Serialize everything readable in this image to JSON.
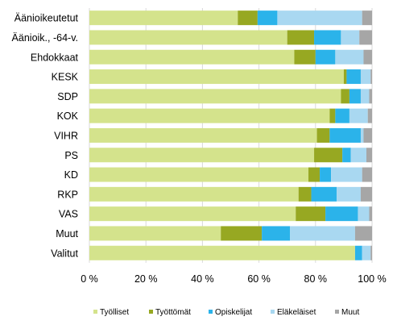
{
  "chart_data": {
    "type": "bar",
    "orientation": "horizontal",
    "stacked": true,
    "title": "",
    "xlabel": "",
    "ylabel": "",
    "xlim": [
      0,
      100
    ],
    "grid": true,
    "legend_position": "bottom",
    "tick_labels": [
      "0 %",
      "20 %",
      "40 %",
      "60 %",
      "80 %",
      "100 %"
    ],
    "categories": [
      "Äänioikeutetut",
      "Äänioik., -64-v.",
      "Ehdokkaat",
      "KESK",
      "SDP",
      "KOK",
      "VIHR",
      "PS",
      "KD",
      "RKP",
      "VAS",
      "Muut",
      "Valitut"
    ],
    "series": [
      {
        "name": "Työlliset",
        "color": "#d4e38c",
        "values": [
          52.5,
          70,
          72.5,
          90,
          89,
          85,
          80.5,
          79.5,
          77.5,
          74,
          73,
          46.5,
          94
        ]
      },
      {
        "name": "Työttömät",
        "color": "#97a822",
        "values": [
          7,
          9.5,
          7.5,
          1,
          3,
          2,
          4.5,
          10,
          4,
          4.5,
          10.5,
          14.5,
          0
        ]
      },
      {
        "name": "Opiskelijat",
        "color": "#2bb3ea",
        "values": [
          7,
          9.5,
          7,
          5,
          4,
          5,
          11,
          3,
          4,
          9,
          11.5,
          10,
          2.5
        ]
      },
      {
        "name": "Eläkeläiset",
        "color": "#a9d8f1",
        "values": [
          30,
          6.5,
          10,
          3.5,
          3,
          6.5,
          1,
          5.5,
          11,
          8.5,
          4,
          23,
          3
        ]
      },
      {
        "name": "Muut",
        "color": "#a6a6a6",
        "values": [
          3.5,
          4.5,
          3,
          0.5,
          1,
          1.5,
          3,
          2,
          3.5,
          4,
          1,
          6,
          0.5
        ]
      }
    ]
  }
}
